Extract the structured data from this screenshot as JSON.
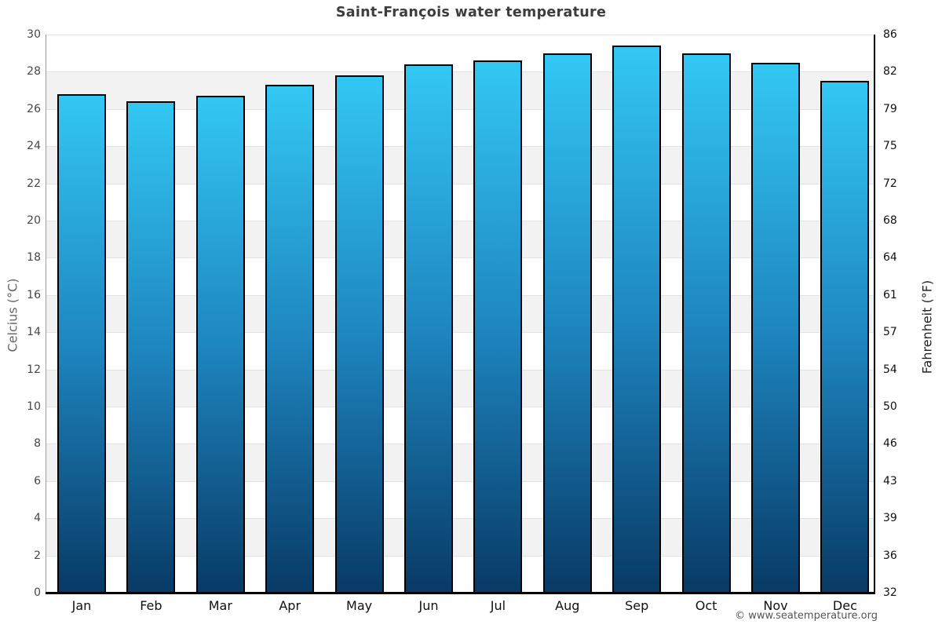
{
  "footer": {
    "credit": "© www.seatemperature.org"
  },
  "chart_data": {
    "type": "bar",
    "title": "Saint-François water temperature",
    "categories": [
      "Jan",
      "Feb",
      "Mar",
      "Apr",
      "May",
      "Jun",
      "Jul",
      "Aug",
      "Sep",
      "Oct",
      "Nov",
      "Dec"
    ],
    "series": [
      {
        "name": "Water temperature",
        "unit": "°C",
        "values": [
          26.8,
          26.4,
          26.7,
          27.3,
          27.8,
          28.4,
          28.6,
          29.0,
          29.4,
          29.0,
          28.5,
          27.5
        ]
      }
    ],
    "xlabel": "",
    "ylabel_left": "Celcius (°C)",
    "ylabel_right": "Fahrenheit (°F)",
    "ylim_left": [
      0,
      30
    ],
    "ylim_right": [
      32,
      86
    ],
    "yticks_left": [
      "30",
      "28",
      "26",
      "24",
      "22",
      "20",
      "18",
      "16",
      "14",
      "12",
      "10",
      "8",
      "6",
      "4",
      "2",
      "0"
    ],
    "yticks_right": [
      "86",
      "82",
      "79",
      "75",
      "72",
      "68",
      "64",
      "61",
      "57",
      "54",
      "50",
      "46",
      "43",
      "39",
      "36",
      "32"
    ],
    "legend": "none",
    "grid": "horizontal-bands-alternating",
    "colors": {
      "bar_gradient_top": "#33C7F4",
      "bar_gradient_mid": "#1E86C0",
      "bar_gradient_bottom": "#083A65",
      "bar_border": "#000000",
      "band_light": "#FFFFFF",
      "band_shade": "#F2F2F2",
      "gridline": "#E2E2E2",
      "axis_left_line": "#9A9A9A",
      "axis_bottom_line": "#000000",
      "axis_right_line": "#000000",
      "title_text": "#3D3D3D",
      "tick_left_text": "#474747",
      "tick_right_text": "#111111",
      "month_text": "#111111",
      "ylabel_left_text": "#666666",
      "ylabel_right_text": "#222222",
      "credit_text": "#555555"
    }
  }
}
